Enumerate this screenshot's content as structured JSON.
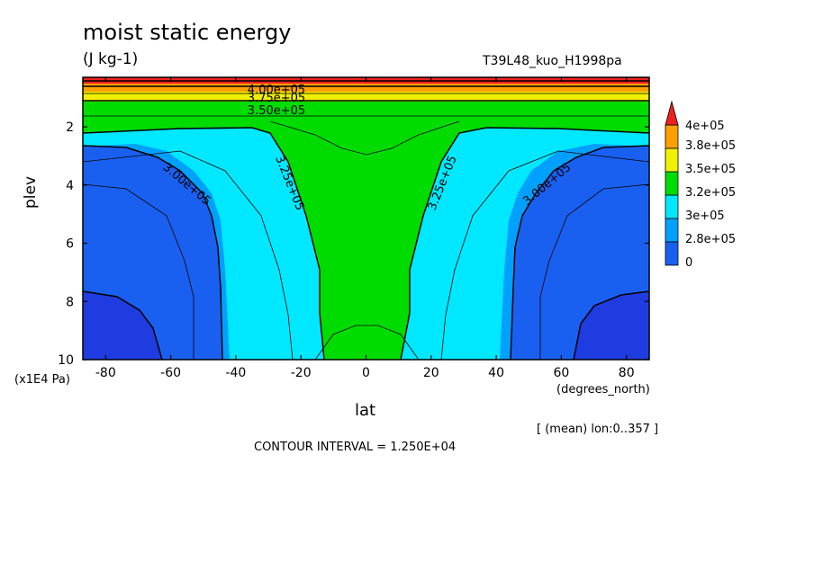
{
  "title": "moist static energy",
  "units": "(J kg-1)",
  "experiment": "T39L48_kuo_H1998pa",
  "mean_note": "[ (mean) lon:0..357 ]",
  "contour_interval": "CONTOUR INTERVAL = 1.250E+04",
  "chart_data": {
    "type": "contour",
    "title": "moist static energy",
    "xlabel": "lat",
    "xunit": "(degrees_north)",
    "ylabel": "plev",
    "yunit": "(x1E4 Pa)",
    "xlim": [
      -87,
      87
    ],
    "ylim": [
      10,
      0.3
    ],
    "x_ticks": [
      -80,
      -60,
      -40,
      -20,
      0,
      20,
      40,
      60,
      80
    ],
    "x_tick_labels": [
      "-80",
      "-60",
      "-40",
      "-20",
      "0",
      "20",
      "40",
      "60",
      "80"
    ],
    "y_ticks": [
      2,
      4,
      6,
      8,
      10
    ],
    "y_tick_labels": [
      "2",
      "4",
      "6",
      "8",
      "10"
    ],
    "colorbar": {
      "labels": [
        "0",
        "2.8e+05",
        "3e+05",
        "3.2e+05",
        "3.5e+05",
        "3.8e+05",
        "4e+05"
      ],
      "colors": [
        "#1a60f0",
        "#00a0ff",
        "#00e8ff",
        "#00dc00",
        "#f0f000",
        "#ffa000",
        "#f02020"
      ]
    },
    "contour_labels": [
      "4.00e+05",
      "3.75e+05",
      "3.50e+05",
      "3.00e+05",
      "3.25e+05",
      "3.25e+05",
      "3.00e+05"
    ],
    "lower_band_color": "#1f3ce0",
    "contour_interval": 12500,
    "regions": [
      {
        "name": "cyan",
        "lat": [
          -83,
          -70,
          -55,
          -48,
          -45,
          -42,
          -38,
          -32,
          -28,
          -22,
          -17,
          -17,
          -12,
          0,
          12,
          17,
          17,
          22,
          28,
          32,
          38,
          42,
          45,
          48,
          55,
          70,
          83
        ],
        "plev": [
          10,
          10,
          10,
          10,
          7.5,
          6,
          4.5,
          3.3,
          2.3,
          1.8,
          1.6,
          0.3,
          0.3,
          0.3,
          0.3,
          0.3,
          1.6,
          1.8,
          2.3,
          3.3,
          4.5,
          6,
          7.5,
          10,
          10,
          10,
          10
        ]
      }
    ]
  }
}
